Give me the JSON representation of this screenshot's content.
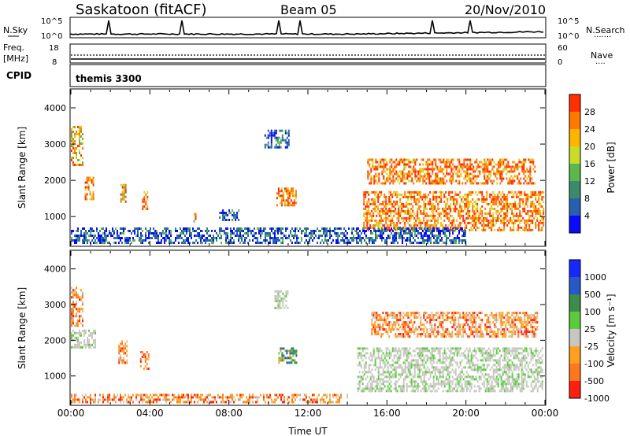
{
  "header": {
    "station": "Saskatoon (fitACF)",
    "beam": "Beam 05",
    "date": "20/Nov/2010"
  },
  "strips": {
    "nsky": {
      "label": "N.Sky",
      "tick_top": "10^5",
      "tick_bottom": "10^0",
      "right_tick_top": "10^5",
      "right_tick_bottom": "10^0",
      "right_label": "N.Search",
      "right_legend": "·······"
    },
    "freq": {
      "label": "Freq.",
      "unit": "[MHz]",
      "tick_top": "18",
      "tick_bottom": "8",
      "right_tick_top": "60",
      "right_tick_bottom": "0",
      "right_label": "Nave",
      "right_legend": "····"
    },
    "cpid": {
      "label": "CPID",
      "value": "themis 3300"
    }
  },
  "colors": {
    "grey_scatter": "#c8c8c0",
    "power_scale": [
      "#0a0aff",
      "#2860b0",
      "#3c8a6e",
      "#5ab84a",
      "#c8dc28",
      "#ffb400",
      "#ff7800",
      "#ff3000"
    ],
    "velocity_scale": [
      "#1428ff",
      "#2858c8",
      "#3c8c4c",
      "#5acc3c",
      "#c8c8c0",
      "#ffa020",
      "#ff7820",
      "#ff2010"
    ]
  },
  "chart_data": [
    {
      "type": "heatmap",
      "name": "power",
      "xlabel": "",
      "ylabel": "Slant Range [km]",
      "ylim": [
        200,
        4500
      ],
      "xlim": [
        0,
        24
      ],
      "y_ticks": [
        "1000",
        "2000",
        "3000",
        "4000"
      ],
      "colorbar": {
        "label": "Power [dB]",
        "ticks": [
          "4",
          "8",
          "12",
          "16",
          "20",
          "24",
          "28"
        ]
      },
      "regions": [
        {
          "t0": 0.0,
          "t1": 0.6,
          "r0": 2400,
          "r1": 3500,
          "level": "mid"
        },
        {
          "t0": 0.7,
          "t1": 1.1,
          "r0": 1500,
          "r1": 2100,
          "level": "high"
        },
        {
          "t0": 2.5,
          "t1": 2.8,
          "r0": 1400,
          "r1": 1900,
          "level": "mid"
        },
        {
          "t0": 3.6,
          "t1": 3.9,
          "r0": 1200,
          "r1": 1700,
          "level": "high"
        },
        {
          "t0": 6.2,
          "t1": 6.4,
          "r0": 900,
          "r1": 1100,
          "level": "mid"
        },
        {
          "t0": 7.5,
          "t1": 8.5,
          "r0": 900,
          "r1": 1200,
          "level": "low"
        },
        {
          "t0": 9.8,
          "t1": 11.0,
          "r0": 2900,
          "r1": 3400,
          "level": "low"
        },
        {
          "t0": 10.4,
          "t1": 11.4,
          "r0": 1300,
          "r1": 1800,
          "level": "high"
        },
        {
          "t0": 14.8,
          "t1": 23.9,
          "r0": 600,
          "r1": 1700,
          "level": "high"
        },
        {
          "t0": 15.0,
          "t1": 23.5,
          "r0": 1900,
          "r1": 2600,
          "level": "high"
        },
        {
          "t0": 0.0,
          "t1": 20.0,
          "r0": 250,
          "r1": 700,
          "level": "low"
        }
      ]
    },
    {
      "type": "heatmap",
      "name": "velocity",
      "xlabel": "Time UT",
      "ylabel": "Slant Range [km]",
      "ylim": [
        200,
        4500
      ],
      "xlim": [
        0,
        24
      ],
      "y_ticks": [
        "1000",
        "2000",
        "3000",
        "4000"
      ],
      "x_ticks": [
        "00:00",
        "04:00",
        "08:00",
        "12:00",
        "16:00",
        "20:00",
        "00:00"
      ],
      "colorbar": {
        "label": "Velocity [m s⁻¹]",
        "ticks": [
          "1000",
          "500",
          "100",
          "25",
          "-25",
          "-100",
          "-500",
          "-1000"
        ]
      },
      "regions": [
        {
          "t0": 0.0,
          "t1": 0.6,
          "r0": 2400,
          "r1": 3500,
          "level": "neg"
        },
        {
          "t0": 0.0,
          "t1": 1.2,
          "r0": 1800,
          "r1": 2300,
          "level": "zero"
        },
        {
          "t0": 2.4,
          "t1": 2.8,
          "r0": 1400,
          "r1": 2000,
          "level": "neg"
        },
        {
          "t0": 3.5,
          "t1": 3.9,
          "r0": 1200,
          "r1": 1700,
          "level": "neg"
        },
        {
          "t0": 10.3,
          "t1": 11.0,
          "r0": 2900,
          "r1": 3400,
          "level": "zero"
        },
        {
          "t0": 10.5,
          "t1": 11.4,
          "r0": 1400,
          "r1": 1800,
          "level": "pos"
        },
        {
          "t0": 14.5,
          "t1": 23.9,
          "r0": 600,
          "r1": 1800,
          "level": "zero"
        },
        {
          "t0": 15.2,
          "t1": 23.6,
          "r0": 2100,
          "r1": 2800,
          "level": "neg"
        },
        {
          "t0": 0.0,
          "t1": 14.0,
          "r0": 250,
          "r1": 500,
          "level": "neg"
        }
      ]
    }
  ]
}
